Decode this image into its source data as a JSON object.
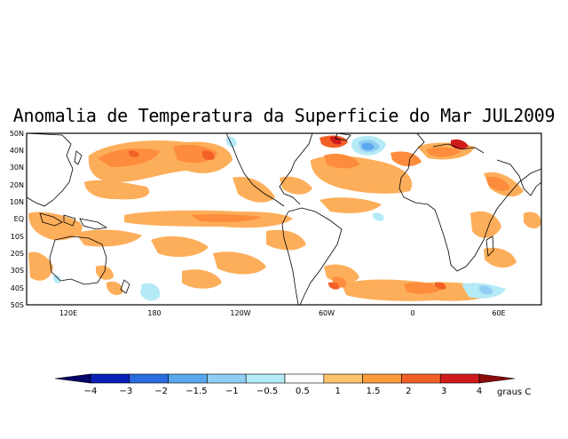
{
  "title": "Anomalia de Temperatura da Superficie do Mar JUL2009",
  "map": {
    "lat_labels": [
      "50N",
      "40N",
      "30N",
      "20N",
      "10N",
      "EQ",
      "10S",
      "20S",
      "30S",
      "40S",
      "50S"
    ],
    "lon_labels": [
      "120E",
      "180",
      "120W",
      "60W",
      "0",
      "60E"
    ],
    "warm_palette": {
      "0.5": "#fdae5a",
      "1": "#fd8c3c",
      "1.5": "#f26026",
      "2": "#cf1b1b",
      "3": "#a50f15"
    },
    "cool_palette": {
      "-0.5": "#b5eaf7",
      "-1": "#8fcdf2",
      "-1.5": "#5aa8ef",
      "-2": "#2b6be0"
    }
  },
  "colorbar": {
    "labels": [
      "−4",
      "−3",
      "−2",
      "−1.5",
      "−1",
      "−0.5",
      "0.5",
      "1",
      "1.5",
      "2",
      "3",
      "4"
    ],
    "colors": [
      "#03036b",
      "#0a1fb5",
      "#2b6be0",
      "#5aa8ef",
      "#8fcdf2",
      "#b5eaf7",
      "#ffffff",
      "#fdc26b",
      "#fd9a3e",
      "#f26026",
      "#cf1b1b",
      "#8b0a0a"
    ],
    "units": "graus C"
  }
}
